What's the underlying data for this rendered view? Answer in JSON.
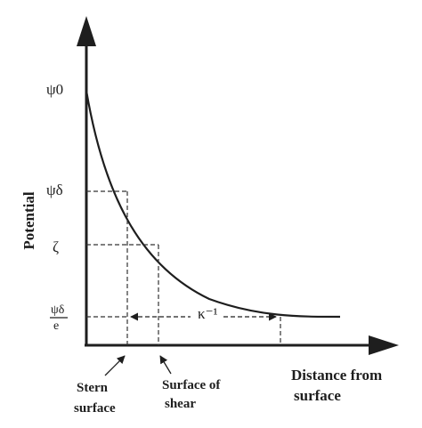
{
  "diagram": {
    "y_axis_label": "Potential",
    "x_axis_label_line1": "Distance from",
    "x_axis_label_line2": "surface",
    "levels": {
      "psi0": "ψ0",
      "psi_delta": "ψδ",
      "zeta": "ζ",
      "psi_delta_over_e_num": "ψδ",
      "psi_delta_over_e_den": "e"
    },
    "debye_length_label": "κ⁻¹",
    "stern_label_line1": "Stern",
    "stern_label_line2": "surface",
    "shear_label_line1": "Surface of",
    "shear_label_line2": "shear"
  }
}
